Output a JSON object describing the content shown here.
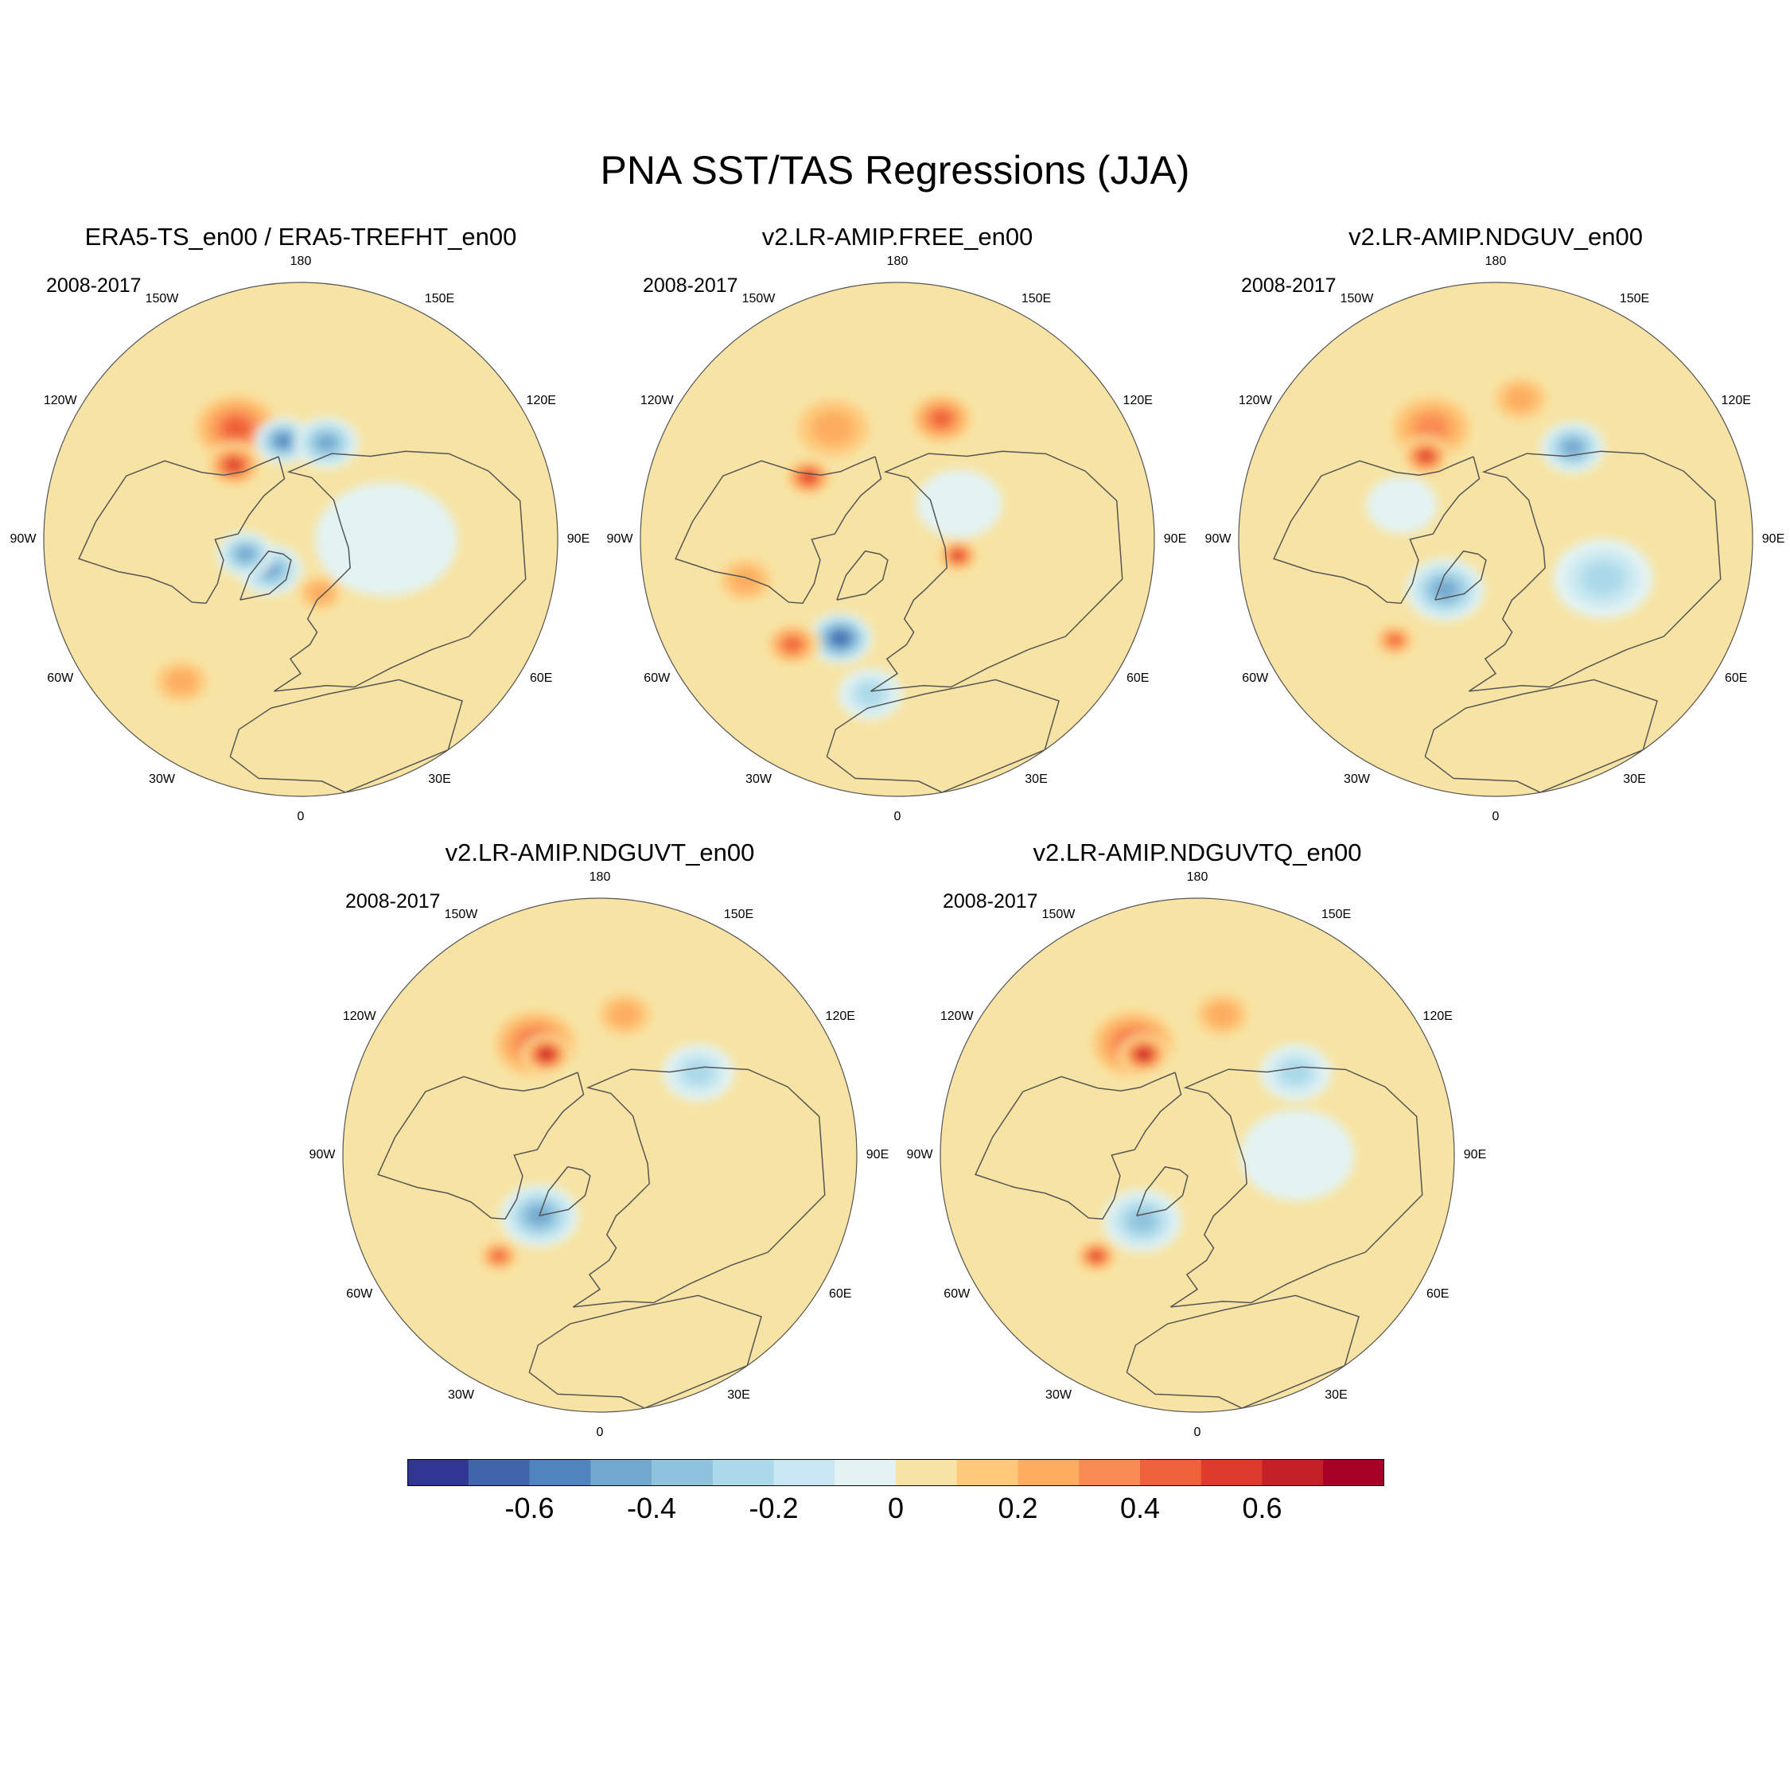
{
  "figure_title": "PNA SST/TAS Regressions (JJA)",
  "colors": {
    "levels": [
      "#313695",
      "#4065ab",
      "#4f84bf",
      "#72a7cf",
      "#8fc2dd",
      "#abd9e9",
      "#c9e8f1",
      "#e3f3f3",
      "#f7e4a4",
      "#fec97a",
      "#fdad60",
      "#f98b52",
      "#ef6139",
      "#dc3b2b",
      "#c21f27",
      "#a50026"
    ],
    "coastline": "#555555"
  },
  "chart_data": [
    {
      "type": "polar-contour-map",
      "id": "p1",
      "title": "ERA5-TS_en00 / ERA5-TREFHT_en00",
      "period": "2008-2017",
      "features": [
        {
          "lon": -150,
          "lat": 45,
          "r": 14,
          "v": 0.45
        },
        {
          "lon": -138,
          "lat": 55,
          "r": 8,
          "v": 0.55
        },
        {
          "lon": -170,
          "lat": 55,
          "r": 8,
          "v": -0.6
        },
        {
          "lon": 165,
          "lat": 55,
          "r": 9,
          "v": -0.45
        },
        {
          "lon": -45,
          "lat": 75,
          "r": 9,
          "v": -0.45
        },
        {
          "lon": -40,
          "lat": 25,
          "r": 10,
          "v": 0.25
        },
        {
          "lon": 20,
          "lat": 70,
          "r": 8,
          "v": 0.3
        },
        {
          "lon": 90,
          "lat": 60,
          "r": 20,
          "v": -0.15
        },
        {
          "lon": 45,
          "lat": 35,
          "r": 14,
          "v": 0.15
        },
        {
          "lon": -75,
          "lat": 70,
          "r": 8,
          "v": -0.5
        }
      ]
    },
    {
      "type": "polar-contour-map",
      "id": "p2",
      "title": "v2.LR-AMIP.FREE_en00",
      "period": "2008-2017",
      "features": [
        {
          "lon": -150,
          "lat": 45,
          "r": 14,
          "v": 0.35
        },
        {
          "lon": -125,
          "lat": 52,
          "r": 7,
          "v": 0.55
        },
        {
          "lon": 160,
          "lat": 45,
          "r": 10,
          "v": 0.45
        },
        {
          "lon": -30,
          "lat": 50,
          "r": 9,
          "v": -0.65
        },
        {
          "lon": -45,
          "lat": 38,
          "r": 8,
          "v": 0.45
        },
        {
          "lon": -10,
          "lat": 35,
          "r": 9,
          "v": -0.3
        },
        {
          "lon": 75,
          "lat": 68,
          "r": 6,
          "v": 0.6
        },
        {
          "lon": 120,
          "lat": 65,
          "r": 12,
          "v": -0.15
        },
        {
          "lon": -75,
          "lat": 35,
          "r": 10,
          "v": 0.25
        },
        {
          "lon": 60,
          "lat": 30,
          "r": 14,
          "v": 0.15
        }
      ]
    },
    {
      "type": "polar-contour-map",
      "id": "p3",
      "title": "v2.LR-AMIP.NDGUV_en00",
      "period": "2008-2017",
      "features": [
        {
          "lon": -150,
          "lat": 45,
          "r": 14,
          "v": 0.4
        },
        {
          "lon": -140,
          "lat": 52,
          "r": 7,
          "v": 0.6
        },
        {
          "lon": 140,
          "lat": 48,
          "r": 9,
          "v": -0.45
        },
        {
          "lon": -45,
          "lat": 65,
          "r": 11,
          "v": -0.45
        },
        {
          "lon": -45,
          "lat": 40,
          "r": 6,
          "v": 0.45
        },
        {
          "lon": 70,
          "lat": 50,
          "r": 14,
          "v": -0.25
        },
        {
          "lon": 170,
          "lat": 40,
          "r": 10,
          "v": 0.3
        },
        {
          "lon": -110,
          "lat": 55,
          "r": 10,
          "v": -0.15
        },
        {
          "lon": 30,
          "lat": 35,
          "r": 12,
          "v": 0.15
        }
      ]
    },
    {
      "type": "polar-contour-map",
      "id": "p4",
      "title": "v2.LR-AMIP.NDGUVT_en00",
      "period": "2008-2017",
      "features": [
        {
          "lon": -150,
          "lat": 45,
          "r": 14,
          "v": 0.45
        },
        {
          "lon": -152,
          "lat": 50,
          "r": 7,
          "v": 0.65
        },
        {
          "lon": -45,
          "lat": 60,
          "r": 11,
          "v": -0.45
        },
        {
          "lon": -45,
          "lat": 40,
          "r": 6,
          "v": 0.5
        },
        {
          "lon": 130,
          "lat": 45,
          "r": 10,
          "v": -0.3
        },
        {
          "lon": 170,
          "lat": 40,
          "r": 10,
          "v": 0.3
        },
        {
          "lon": 90,
          "lat": 55,
          "r": 16,
          "v": 0.05
        },
        {
          "lon": -80,
          "lat": 40,
          "r": 12,
          "v": 0.15
        }
      ]
    },
    {
      "type": "polar-contour-map",
      "id": "p5",
      "title": "v2.LR-AMIP.NDGUVTQ_en00",
      "period": "2008-2017",
      "features": [
        {
          "lon": -150,
          "lat": 45,
          "r": 14,
          "v": 0.45
        },
        {
          "lon": -152,
          "lat": 50,
          "r": 7,
          "v": 0.65
        },
        {
          "lon": -40,
          "lat": 60,
          "r": 11,
          "v": -0.4
        },
        {
          "lon": -45,
          "lat": 40,
          "r": 6,
          "v": 0.55
        },
        {
          "lon": 130,
          "lat": 45,
          "r": 10,
          "v": -0.35
        },
        {
          "lon": 170,
          "lat": 40,
          "r": 10,
          "v": 0.3
        },
        {
          "lon": 90,
          "lat": 55,
          "r": 16,
          "v": -0.1
        },
        {
          "lon": -80,
          "lat": 40,
          "r": 12,
          "v": 0.15
        }
      ]
    }
  ],
  "lon_labels": [
    "180",
    "150E",
    "120E",
    "90E",
    "60E",
    "30E",
    "0",
    "30W",
    "60W",
    "90W",
    "120W",
    "150W"
  ],
  "colorbar": {
    "bounds": [
      -0.8,
      0.8
    ],
    "ticks": [
      "-0.6",
      "-0.4",
      "-0.2",
      "0",
      "0.2",
      "0.4",
      "0.6"
    ]
  }
}
